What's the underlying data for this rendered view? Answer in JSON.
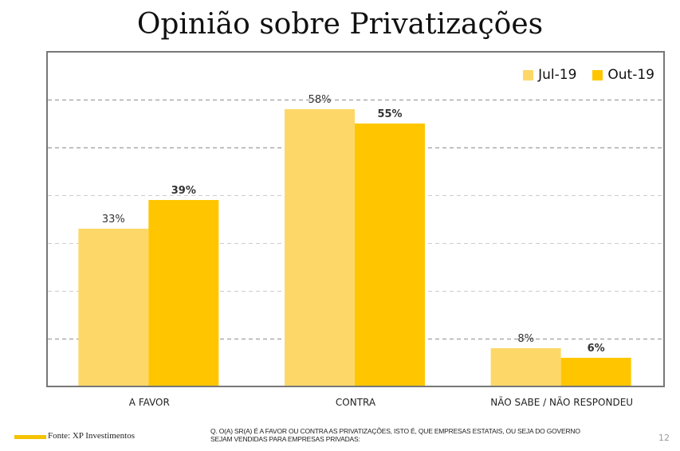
{
  "chart_data": {
    "type": "bar",
    "title": "Opinião sobre Privatizações",
    "categories": [
      "A FAVOR",
      "CONTRA",
      "NÃO SABE / NÃO RESPONDEU"
    ],
    "series": [
      {
        "name": "Jul-19",
        "values": [
          33,
          58,
          8
        ],
        "labels": [
          "33%",
          "58%",
          "8%"
        ],
        "color": "#fdd868"
      },
      {
        "name": "Out-19",
        "values": [
          39,
          55,
          6
        ],
        "labels": [
          "39%",
          "55%",
          "6%"
        ],
        "color": "#ffc600"
      }
    ],
    "ylim": [
      0,
      70
    ],
    "gridlines": [
      10,
      20,
      30,
      40,
      50,
      60
    ],
    "grid": true,
    "legend_position": "top-right",
    "xlabel": "",
    "ylabel": ""
  },
  "footer": {
    "source": "Fonte: XP Investimentos",
    "question_line1": "Q. O(A) SR(A) É A FAVOR OU CONTRA AS PRIVATIZAÇÕES, ISTO É, QUE EMPRESAS ESTATAIS, OU SEJA DO GOVERNO",
    "question_line2": "SEJAM VENDIDAS PARA EMPRESAS PRIVADAS:",
    "page_number": "12",
    "accent_color": "#f5c200"
  }
}
